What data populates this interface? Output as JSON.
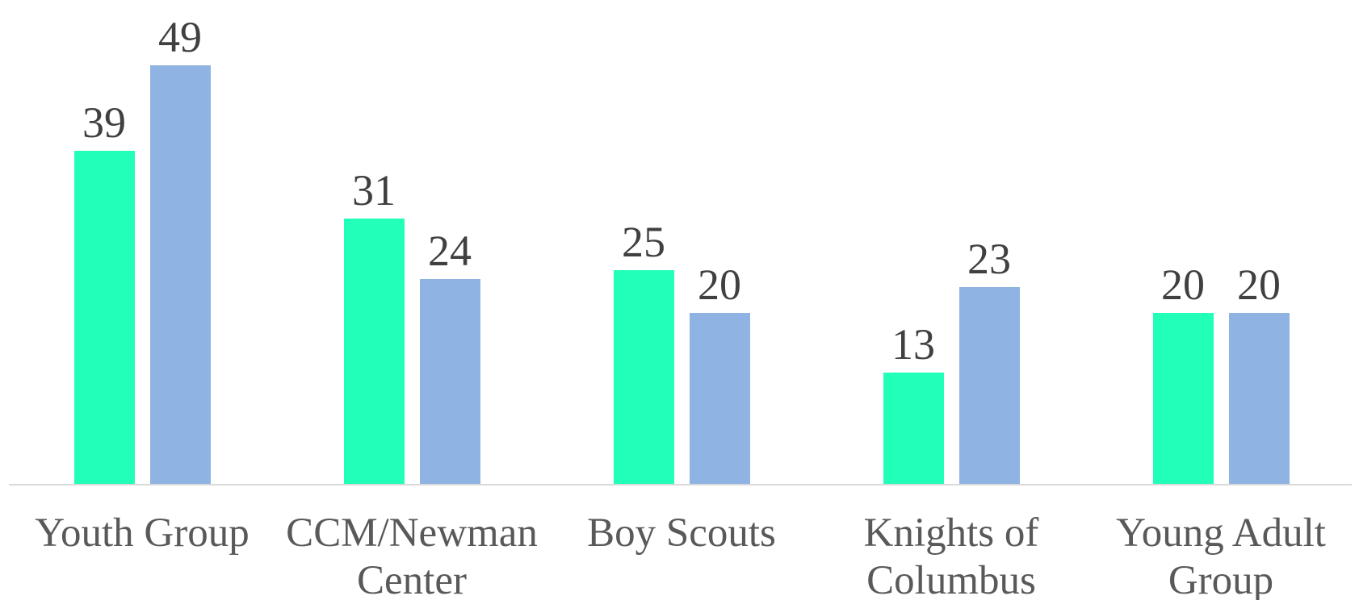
{
  "chart_data": {
    "type": "bar",
    "categories": [
      "Youth Group",
      "CCM/Newman Center",
      "Boy Scouts",
      "Knights of Columbus",
      "Young Adult Group"
    ],
    "series": [
      {
        "color": "#22ffb8",
        "values": [
          39,
          31,
          25,
          13,
          20
        ]
      },
      {
        "color": "#8fb3e2",
        "values": [
          49,
          24,
          20,
          23,
          20
        ]
      }
    ]
  }
}
